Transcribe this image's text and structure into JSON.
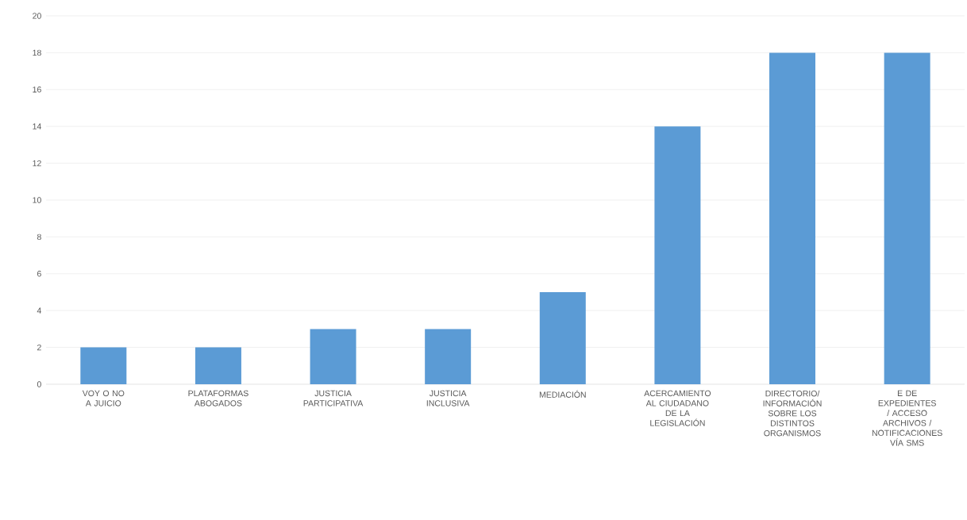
{
  "chart_data": {
    "type": "bar",
    "categories": [
      "VOY O NO A JUICIO",
      "PLATAFORMAS ABOGADOS",
      "JUSTICIA PARTICIPATIVA",
      "JUSTICIA INCLUSIVA",
      "MEDIACIÓN",
      "ACERCAMIENTO AL CIUDADANO DE LA LEGISLACIÓN",
      "DIRECTORIO/ INFORMACIÓN SOBRE LOS DISTINTOS ORGANISMOS",
      "E DE EXPEDIENTES / ACCESO ARCHIVOS / NOTIFICACIONES VÍA SMS"
    ],
    "values": [
      2,
      2,
      3,
      3,
      5,
      14,
      18,
      18
    ],
    "color": "#5b9bd5",
    "ylim": [
      0,
      20
    ],
    "yticks": [
      0,
      2,
      4,
      6,
      8,
      10,
      12,
      14,
      16,
      18,
      20
    ],
    "grid": "y"
  }
}
